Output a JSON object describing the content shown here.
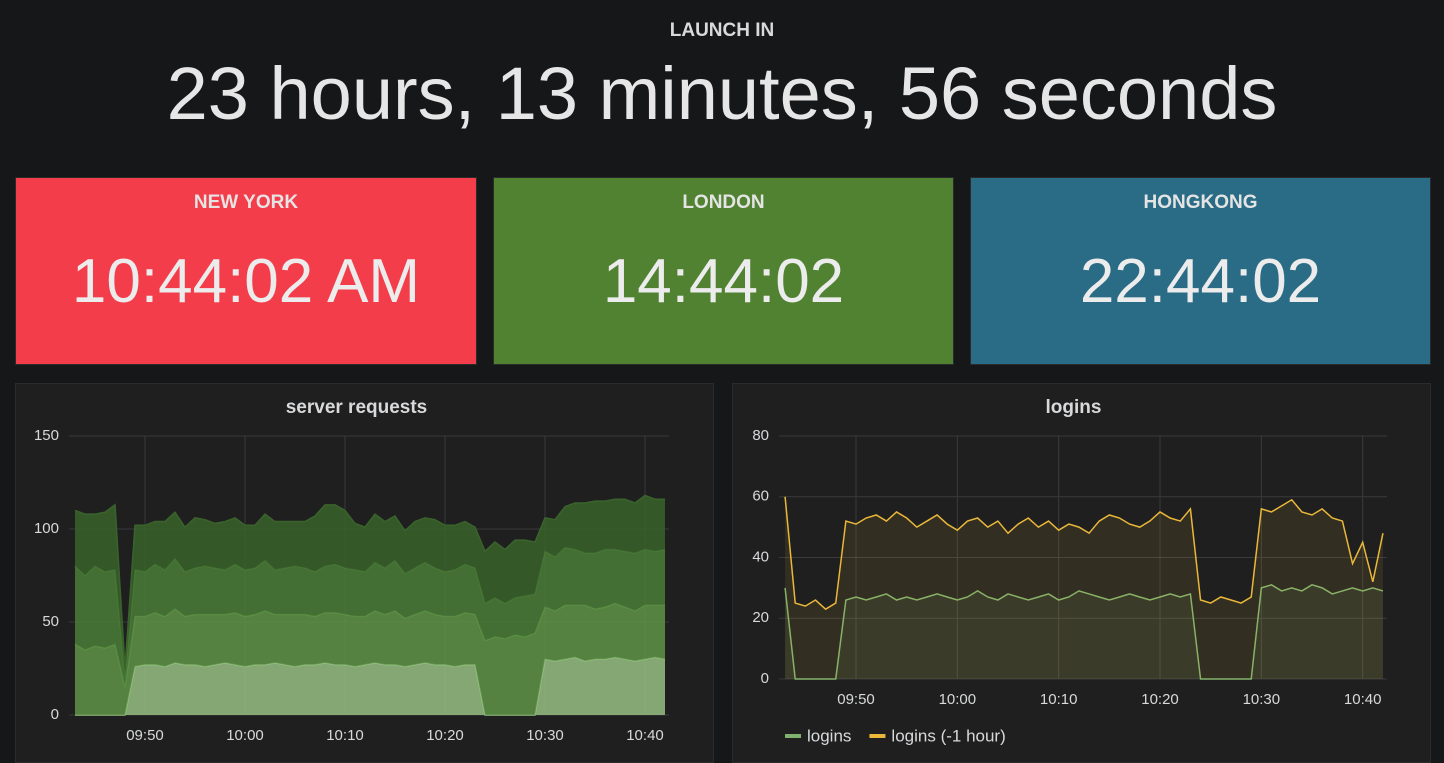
{
  "header": {
    "title": "LAUNCH IN",
    "countdown": "23 hours, 13 minutes, 56 seconds"
  },
  "clocks": [
    {
      "label": "NEW YORK",
      "time": "10:44:02 AM",
      "color": "#f43d4a"
    },
    {
      "label": "LONDON",
      "time": "14:44:02",
      "color": "#508232"
    },
    {
      "label": "HONGKONG",
      "time": "22:44:02",
      "color": "#2a6b85"
    }
  ],
  "chart_data": [
    {
      "type": "area",
      "stacked": true,
      "title": "server requests",
      "x": [
        "09:43",
        "09:44",
        "09:45",
        "09:46",
        "09:47",
        "09:48",
        "09:49",
        "09:50",
        "09:51",
        "09:52",
        "09:53",
        "09:54",
        "09:55",
        "09:56",
        "09:57",
        "09:58",
        "09:59",
        "10:00",
        "10:01",
        "10:02",
        "10:03",
        "10:04",
        "10:05",
        "10:06",
        "10:07",
        "10:08",
        "10:09",
        "10:10",
        "10:11",
        "10:12",
        "10:13",
        "10:14",
        "10:15",
        "10:16",
        "10:17",
        "10:18",
        "10:19",
        "10:20",
        "10:21",
        "10:22",
        "10:23",
        "10:24",
        "10:25",
        "10:26",
        "10:27",
        "10:28",
        "10:29",
        "10:30",
        "10:31",
        "10:32",
        "10:33",
        "10:34",
        "10:35",
        "10:36",
        "10:37",
        "10:38",
        "10:39",
        "10:40",
        "10:41",
        "10:42"
      ],
      "xticks": [
        "09:50",
        "10:00",
        "10:10",
        "10:20",
        "10:30",
        "10:40"
      ],
      "ylim": [
        0,
        150
      ],
      "yticks": [
        0,
        50,
        100,
        150
      ],
      "grid": true,
      "series": [
        {
          "color": "#96bf84",
          "values": [
            0,
            0,
            0,
            0,
            0,
            0,
            26,
            27,
            27,
            26,
            28,
            27,
            27,
            26,
            27,
            28,
            27,
            26,
            27,
            27,
            28,
            27,
            26,
            27,
            27,
            28,
            27,
            27,
            26,
            27,
            28,
            27,
            27,
            26,
            27,
            28,
            27,
            27,
            26,
            27,
            27,
            0,
            0,
            0,
            0,
            0,
            0,
            30,
            29,
            30,
            31,
            29,
            30,
            30,
            31,
            30,
            29,
            30,
            31,
            30
          ]
        },
        {
          "color": "#5f9447",
          "values": [
            38,
            35,
            37,
            36,
            38,
            15,
            27,
            26,
            28,
            27,
            29,
            26,
            27,
            28,
            27,
            26,
            28,
            27,
            27,
            29,
            26,
            27,
            28,
            27,
            26,
            27,
            28,
            27,
            27,
            26,
            28,
            27,
            29,
            26,
            27,
            28,
            27,
            26,
            27,
            28,
            27,
            40,
            42,
            41,
            43,
            42,
            44,
            28,
            27,
            29,
            28,
            30,
            27,
            28,
            29,
            28,
            27,
            29,
            28,
            29
          ]
        },
        {
          "color": "#4a7c38",
          "values": [
            42,
            40,
            43,
            41,
            40,
            5,
            25,
            24,
            26,
            25,
            27,
            24,
            25,
            26,
            25,
            24,
            26,
            25,
            25,
            27,
            24,
            25,
            26,
            25,
            24,
            25,
            26,
            25,
            25,
            24,
            26,
            25,
            27,
            24,
            25,
            26,
            25,
            24,
            25,
            26,
            25,
            20,
            21,
            19,
            20,
            22,
            21,
            30,
            29,
            31,
            30,
            28,
            30,
            31,
            29,
            30,
            31,
            30,
            29,
            30
          ]
        },
        {
          "color": "#3a632c",
          "values": [
            30,
            33,
            28,
            32,
            35,
            5,
            24,
            25,
            23,
            26,
            25,
            24,
            27,
            25,
            24,
            26,
            25,
            24,
            23,
            25,
            26,
            25,
            24,
            25,
            30,
            33,
            32,
            31,
            25,
            24,
            26,
            25,
            24,
            23,
            25,
            24,
            26,
            25,
            24,
            23,
            22,
            28,
            30,
            29,
            31,
            30,
            28,
            18,
            20,
            22,
            25,
            27,
            28,
            26,
            27,
            28,
            27,
            29,
            28,
            27
          ]
        }
      ]
    },
    {
      "type": "line",
      "fill": true,
      "title": "logins",
      "legend": "bottom",
      "x": [
        "09:43",
        "09:44",
        "09:45",
        "09:46",
        "09:47",
        "09:48",
        "09:49",
        "09:50",
        "09:51",
        "09:52",
        "09:53",
        "09:54",
        "09:55",
        "09:56",
        "09:57",
        "09:58",
        "09:59",
        "10:00",
        "10:01",
        "10:02",
        "10:03",
        "10:04",
        "10:05",
        "10:06",
        "10:07",
        "10:08",
        "10:09",
        "10:10",
        "10:11",
        "10:12",
        "10:13",
        "10:14",
        "10:15",
        "10:16",
        "10:17",
        "10:18",
        "10:19",
        "10:20",
        "10:21",
        "10:22",
        "10:23",
        "10:24",
        "10:25",
        "10:26",
        "10:27",
        "10:28",
        "10:29",
        "10:30",
        "10:31",
        "10:32",
        "10:33",
        "10:34",
        "10:35",
        "10:36",
        "10:37",
        "10:38",
        "10:39",
        "10:40",
        "10:41",
        "10:42"
      ],
      "xticks": [
        "09:50",
        "10:00",
        "10:10",
        "10:20",
        "10:30",
        "10:40"
      ],
      "ylim": [
        0,
        80
      ],
      "yticks": [
        0,
        20,
        40,
        60,
        80
      ],
      "grid": true,
      "series": [
        {
          "name": "logins",
          "color": "#7eb26d",
          "values": [
            30,
            0,
            0,
            0,
            0,
            0,
            26,
            27,
            26,
            27,
            28,
            26,
            27,
            26,
            27,
            28,
            27,
            26,
            27,
            29,
            27,
            26,
            28,
            27,
            26,
            27,
            28,
            26,
            27,
            29,
            28,
            27,
            26,
            27,
            28,
            27,
            26,
            27,
            28,
            27,
            28,
            0,
            0,
            0,
            0,
            0,
            0,
            30,
            31,
            29,
            30,
            29,
            31,
            30,
            28,
            29,
            30,
            29,
            30,
            29
          ]
        },
        {
          "name": "logins (-1 hour)",
          "color": "#eab839",
          "values": [
            60,
            25,
            24,
            26,
            23,
            25,
            52,
            51,
            53,
            54,
            52,
            55,
            53,
            50,
            52,
            54,
            51,
            49,
            52,
            53,
            50,
            52,
            48,
            51,
            53,
            50,
            52,
            49,
            51,
            50,
            48,
            52,
            54,
            53,
            51,
            50,
            52,
            55,
            53,
            52,
            56,
            26,
            25,
            27,
            26,
            25,
            27,
            56,
            55,
            57,
            59,
            55,
            54,
            56,
            53,
            52,
            38,
            45,
            32,
            48
          ]
        }
      ]
    }
  ]
}
